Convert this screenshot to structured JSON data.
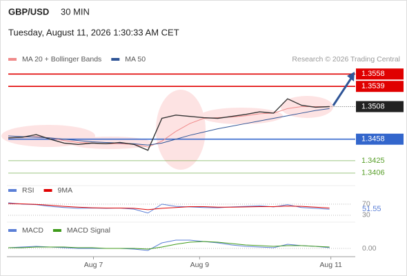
{
  "header": {
    "symbol": "GBP/USD",
    "interval": "30 MIN",
    "datetime": "Tuesday, August 11, 2026 1:30:33 AM CET"
  },
  "credit": "Research © 2026 Trading Central",
  "chart_data": [
    {
      "type": "line",
      "color": "#333333",
      "values": [
        1.346,
        1.3461,
        1.3465,
        1.3458,
        1.3452,
        1.345,
        1.3452,
        1.3451,
        1.3453,
        1.345,
        1.3441,
        1.349,
        1.3495,
        1.3493,
        1.3491,
        1.349,
        1.3493,
        1.3496,
        1.35,
        1.3498,
        1.352,
        1.351,
        1.3507,
        1.3508
      ],
      "series": [
        {
          "name": "MA 20 + Bollinger Bands",
          "color": "#f08a8a",
          "values": [
            1.346,
            1.3461,
            1.3462,
            1.346,
            1.3456,
            1.3453,
            1.3452,
            1.3451,
            1.3451,
            1.345,
            1.3446,
            1.3455,
            1.347,
            1.3482,
            1.349,
            1.3491,
            1.3492,
            1.3494,
            1.3497,
            1.3498,
            1.3505,
            1.3508,
            1.3508,
            1.3508
          ]
        },
        {
          "name": "MA 50",
          "color": "#2f5597",
          "values": [
            1.3463,
            1.3462,
            1.3461,
            1.346,
            1.3458,
            1.3456,
            1.3454,
            1.3453,
            1.3452,
            1.3451,
            1.3449,
            1.3452,
            1.3458,
            1.3464,
            1.3469,
            1.3474,
            1.3478,
            1.3482,
            1.3486,
            1.349,
            1.3494,
            1.3498,
            1.3502,
            1.3505
          ]
        }
      ],
      "levels": [
        {
          "value": 1.3558,
          "color": "#e00000",
          "style": "box"
        },
        {
          "value": 1.3539,
          "color": "#e00000",
          "style": "box"
        },
        {
          "value": 1.3508,
          "color": "#222222",
          "style": "box",
          "dashed": true
        },
        {
          "value": 1.3458,
          "color": "#3366cc",
          "style": "box"
        },
        {
          "value": 1.3425,
          "color": "#5aa02c",
          "style": "text"
        },
        {
          "value": 1.3406,
          "color": "#5aa02c",
          "style": "text"
        }
      ],
      "xlim": [
        0,
        24.6
      ],
      "ylim": [
        1.3391,
        1.3571
      ]
    },
    {
      "type": "line",
      "series": [
        {
          "name": "RSI",
          "color": "#5b7fd6",
          "values": [
            75,
            70,
            68,
            62,
            58,
            55,
            56,
            55,
            56,
            52,
            38,
            70,
            62,
            60,
            58,
            57,
            60,
            62,
            64,
            60,
            68,
            58,
            55,
            51.55
          ]
        },
        {
          "name": "9MA",
          "color": "#e00000",
          "values": [
            72,
            71,
            69,
            66,
            62,
            59,
            57,
            56,
            56,
            55,
            50,
            55,
            58,
            61,
            61,
            59,
            59,
            60,
            61,
            61,
            63,
            62,
            59,
            56
          ]
        }
      ],
      "last_value": 51.55,
      "xlim": [
        0,
        24.6
      ],
      "ylim": [
        15,
        97
      ],
      "yticks": [
        30,
        70
      ]
    },
    {
      "type": "line",
      "series": [
        {
          "name": "MACD",
          "color": "#5b7fd6",
          "values": [
            0.0001,
            0.0002,
            0.0003,
            0.0002,
            0.0001,
            0.0,
            0.0,
            0.0,
            0.0,
            -0.0001,
            -0.0003,
            0.0008,
            0.0012,
            0.0012,
            0.001,
            0.0008,
            0.0005,
            0.0003,
            0.0002,
            0.0001,
            0.0006,
            0.0004,
            0.0003,
            0.0001
          ]
        },
        {
          "name": "MACD Signal",
          "color": "#3e9a1a",
          "values": [
            0.0001,
            0.0001,
            0.0002,
            0.0002,
            0.0002,
            0.0001,
            0.0001,
            0.0,
            0.0,
            0.0,
            -0.0001,
            0.0002,
            0.0006,
            0.0009,
            0.001,
            0.0009,
            0.0007,
            0.0005,
            0.0004,
            0.0003,
            0.0004,
            0.0004,
            0.0003,
            0.0002
          ]
        }
      ],
      "xlim": [
        0,
        24.6
      ],
      "ylim": [
        -0.001,
        0.002
      ],
      "yticks": [
        {
          "value": 0,
          "label": "0.00"
        }
      ],
      "xticks": [
        {
          "value": 6.1,
          "label": "Aug 7"
        },
        {
          "value": 13.7,
          "label": "Aug 9"
        },
        {
          "value": 23.1,
          "label": "Aug 11"
        }
      ]
    }
  ]
}
